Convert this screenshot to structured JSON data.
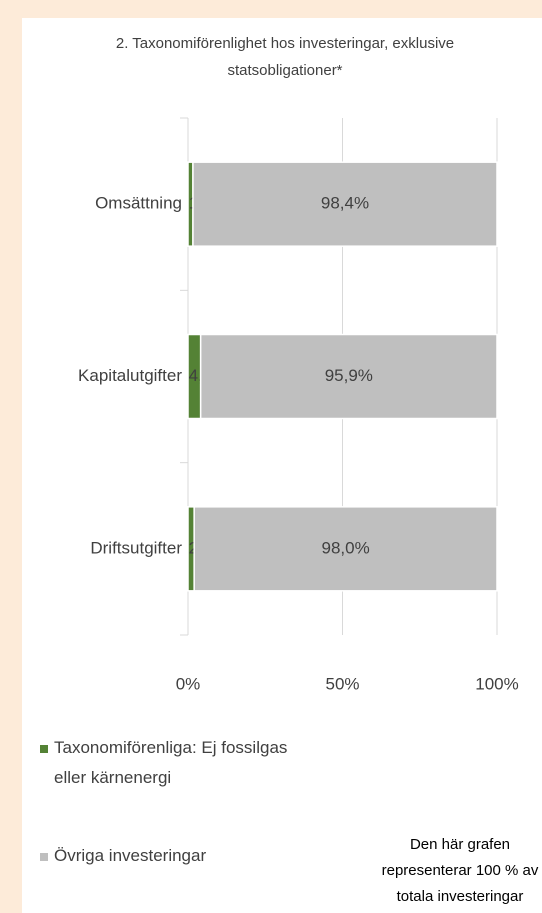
{
  "chart_data": {
    "type": "stacked_barh",
    "title": "2. Taxonomiförenlighet hos investeringar, exklusive statsobligationer*",
    "categories": [
      "Omsättning",
      "Kapitalutgifter",
      "Driftsutgifter"
    ],
    "series": [
      {
        "name": "Taxonomiförenliga: Ej fossilgas eller kärnenergi",
        "color": "#548235",
        "values": [
          1.6,
          4.1,
          2.0
        ],
        "value_labels": [
          "1,6%",
          "4,1%",
          "2,0%"
        ]
      },
      {
        "name": "Övriga investeringar",
        "color": "#bfbfbf",
        "values": [
          98.4,
          95.9,
          98.0
        ],
        "value_labels": [
          "98,4%",
          "95,9%",
          "98,0%"
        ]
      }
    ],
    "xlim": [
      0,
      100
    ],
    "xticks": [
      {
        "value": 0,
        "label": "0%"
      },
      {
        "value": 50,
        "label": "50%"
      },
      {
        "value": 100,
        "label": "100%"
      }
    ],
    "grid": true,
    "legend": "bottom",
    "annotation": "Den här grafen representerar 100 % av totala investeringar"
  }
}
